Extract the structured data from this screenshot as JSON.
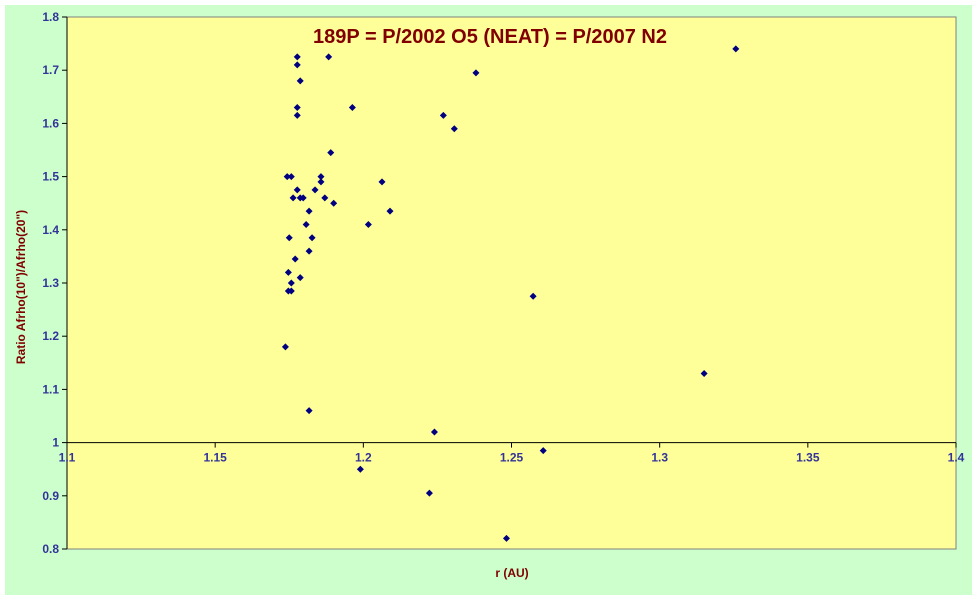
{
  "chart_data": {
    "type": "scatter",
    "title": "189P = P/2002 O5 (NEAT) = P/2007 N2",
    "xlabel": "r (AU)",
    "ylabel": "Ratio Afrho(10\")/Afrho(20\")",
    "xlim": [
      1.1,
      1.4
    ],
    "ylim": [
      0.8,
      1.8
    ],
    "x_axis_crosses_y_at": 1.0,
    "x_ticks": [
      "1.1",
      "1.15",
      "1.2",
      "1.25",
      "1.3",
      "1.35",
      "1.4"
    ],
    "y_ticks": [
      "0.8",
      "0.9",
      "1",
      "1.1",
      "1.2",
      "1.3",
      "1.4",
      "1.5",
      "1.6",
      "1.7",
      "1.8"
    ],
    "grid": false,
    "legend": "none",
    "colors": {
      "chart_background": "#ccffcc",
      "plot_background": "#ffff99",
      "marker": "#000080",
      "title": "#800000",
      "tick_labels": "#333399"
    },
    "series": [
      {
        "marker": "diamond",
        "points": [
          [
            1.1737,
            1.18
          ],
          [
            1.1743,
            1.5
          ],
          [
            1.1747,
            1.32
          ],
          [
            1.1747,
            1.285
          ],
          [
            1.175,
            1.385
          ],
          [
            1.1757,
            1.285
          ],
          [
            1.1757,
            1.3
          ],
          [
            1.1757,
            1.5
          ],
          [
            1.1763,
            1.46
          ],
          [
            1.177,
            1.345
          ],
          [
            1.1777,
            1.725
          ],
          [
            1.1777,
            1.71
          ],
          [
            1.1777,
            1.63
          ],
          [
            1.1777,
            1.615
          ],
          [
            1.1777,
            1.475
          ],
          [
            1.1787,
            1.46
          ],
          [
            1.1787,
            1.31
          ],
          [
            1.1787,
            1.68
          ],
          [
            1.1797,
            1.46
          ],
          [
            1.1807,
            1.41
          ],
          [
            1.1817,
            1.435
          ],
          [
            1.1817,
            1.36
          ],
          [
            1.1817,
            1.06
          ],
          [
            1.1827,
            1.385
          ],
          [
            1.1837,
            1.475
          ],
          [
            1.1857,
            1.5
          ],
          [
            1.1857,
            1.49
          ],
          [
            1.187,
            1.46
          ],
          [
            1.1883,
            1.725
          ],
          [
            1.189,
            1.545
          ],
          [
            1.19,
            1.45
          ],
          [
            1.1963,
            1.63
          ],
          [
            1.199,
            0.95
          ],
          [
            1.2017,
            1.41
          ],
          [
            1.2063,
            1.49
          ],
          [
            1.209,
            1.435
          ],
          [
            1.2223,
            0.905
          ],
          [
            1.224,
            1.02
          ],
          [
            1.227,
            1.615
          ],
          [
            1.2307,
            1.59
          ],
          [
            1.238,
            1.695
          ],
          [
            1.2483,
            0.82
          ],
          [
            1.2573,
            1.275
          ],
          [
            1.2607,
            0.985
          ],
          [
            1.315,
            1.13
          ],
          [
            1.3257,
            1.74
          ]
        ]
      }
    ]
  }
}
